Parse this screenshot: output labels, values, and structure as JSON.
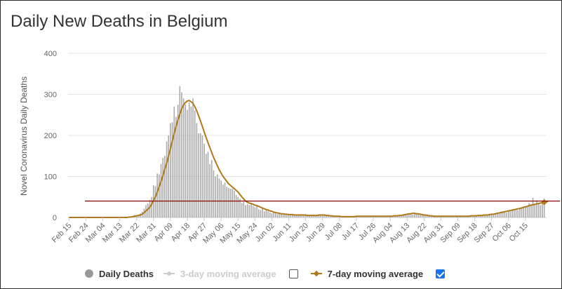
{
  "title": "Daily New Deaths in Belgium",
  "colors": {
    "bars": "#aaaaaa",
    "moving_average_7": "#b07a1a",
    "moving_average_3": "#cccccc",
    "reference_line": "#8b0000",
    "grid": "#e6e6e6"
  },
  "legend": {
    "items": [
      {
        "label": "Daily Deaths",
        "icon": "circle-marker",
        "checkbox": null
      },
      {
        "label": "3-day moving average",
        "icon": "line-marker",
        "checkbox": false
      },
      {
        "label": "7-day moving average",
        "icon": "line-marker",
        "checkbox": true
      }
    ]
  },
  "chart_data": {
    "type": "bar",
    "title": "Daily New Deaths in Belgium",
    "ylabel": "Novel Coronavirus Daily Deaths",
    "xlabel": "",
    "ylim": [
      0,
      400
    ],
    "yticks": [
      0,
      100,
      200,
      300,
      400
    ],
    "grid": true,
    "legend_position": "bottom",
    "x_tick_labels": [
      "Feb 15",
      "Feb 24",
      "Mar 04",
      "Mar 13",
      "Mar 22",
      "Mar 31",
      "Apr 09",
      "Apr 18",
      "Apr 27",
      "May 06",
      "May 15",
      "May 24",
      "Jun 02",
      "Jun 11",
      "Jun 20",
      "Jun 29",
      "Jul 08",
      "Jul 17",
      "Jul 26",
      "Aug 04",
      "Aug 13",
      "Aug 22",
      "Aug 31",
      "Sep 09",
      "Sep 18",
      "Sep 27",
      "Oct 06",
      "Oct 15"
    ],
    "x_start": "Feb 15",
    "reference_line_value": 40,
    "series": [
      {
        "name": "Daily Deaths",
        "values": [
          0,
          0,
          0,
          0,
          0,
          0,
          0,
          0,
          0,
          0,
          0,
          0,
          0,
          0,
          0,
          0,
          0,
          0,
          0,
          0,
          0,
          0,
          0,
          0,
          0,
          0,
          0,
          0,
          0,
          1,
          0,
          1,
          2,
          3,
          4,
          6,
          4,
          5,
          10,
          14,
          21,
          30,
          34,
          43,
          50,
          78,
          76,
          107,
          105,
          130,
          145,
          150,
          185,
          200,
          230,
          232,
          270,
          245,
          275,
          320,
          305,
          290,
          275,
          262,
          280,
          270,
          290,
          260,
          230,
          205,
          205,
          200,
          180,
          155,
          160,
          130,
          140,
          115,
          100,
          105,
          95,
          90,
          80,
          85,
          75,
          72,
          70,
          70,
          65,
          55,
          50,
          45,
          35,
          38,
          30,
          33,
          30,
          32,
          28,
          25,
          28,
          20,
          18,
          22,
          15,
          17,
          15,
          12,
          10,
          12,
          10,
          8,
          9,
          8,
          7,
          6,
          7,
          6,
          5,
          6,
          5,
          6,
          6,
          5,
          5,
          6,
          5,
          4,
          5,
          5,
          4,
          6,
          5,
          7,
          6,
          6,
          5,
          4,
          4,
          3,
          3,
          2,
          3,
          3,
          2,
          2,
          3,
          3,
          2,
          3,
          2,
          3,
          4,
          3,
          3,
          4,
          3,
          4,
          3,
          3,
          4,
          3,
          3,
          3,
          4,
          3,
          3,
          3,
          3,
          3,
          4,
          3,
          4,
          5,
          4,
          6,
          5,
          6,
          8,
          7,
          8,
          10,
          9,
          7,
          10,
          9,
          8,
          7,
          6,
          6,
          5,
          5,
          4,
          4,
          4,
          3,
          3,
          3,
          3,
          3,
          4,
          3,
          4,
          3,
          3,
          3,
          4,
          3,
          3,
          3,
          4,
          3,
          4,
          4,
          3,
          4,
          4,
          5,
          4,
          5,
          5,
          6,
          5,
          6,
          7,
          8,
          9,
          10,
          12,
          11,
          13,
          15,
          14,
          12,
          16,
          15,
          18,
          17,
          20,
          18,
          22,
          25,
          24,
          28,
          26,
          35,
          32,
          48,
          30,
          42,
          35,
          30,
          36,
          46
        ]
      },
      {
        "name": "7-day moving average",
        "values": [
          0,
          0,
          0,
          0,
          0,
          0,
          0,
          0,
          0,
          0,
          0,
          0,
          0,
          0,
          0,
          0,
          0,
          0,
          0,
          0,
          0,
          0,
          0,
          0,
          0,
          0,
          0,
          0,
          0,
          0,
          0,
          0,
          1,
          1,
          2,
          3,
          4,
          5,
          6,
          8,
          12,
          16,
          20,
          25,
          32,
          42,
          50,
          62,
          75,
          88,
          102,
          118,
          132,
          150,
          168,
          186,
          205,
          222,
          238,
          252,
          265,
          274,
          280,
          284,
          285,
          282,
          278,
          270,
          260,
          248,
          235,
          222,
          208,
          195,
          182,
          170,
          158,
          146,
          136,
          126,
          116,
          108,
          100,
          94,
          88,
          82,
          78,
          74,
          70,
          66,
          62,
          56,
          50,
          45,
          40,
          37,
          35,
          34,
          32,
          30,
          29,
          27,
          25,
          23,
          21,
          19,
          18,
          16,
          15,
          13,
          12,
          11,
          10,
          9,
          9,
          8,
          8,
          7,
          7,
          7,
          6,
          6,
          6,
          6,
          6,
          6,
          6,
          5,
          5,
          5,
          5,
          5,
          5,
          6,
          6,
          6,
          6,
          5,
          5,
          4,
          4,
          3,
          3,
          3,
          3,
          2,
          2,
          2,
          2,
          2,
          2,
          2,
          2,
          3,
          3,
          3,
          3,
          3,
          3,
          3,
          3,
          3,
          3,
          3,
          3,
          3,
          3,
          3,
          3,
          3,
          3,
          3,
          3,
          4,
          4,
          4,
          5,
          5,
          6,
          7,
          8,
          9,
          9,
          10,
          10,
          9,
          9,
          8,
          7,
          6,
          6,
          5,
          4,
          4,
          3,
          3,
          3,
          3,
          3,
          3,
          3,
          3,
          3,
          3,
          3,
          3,
          3,
          3,
          3,
          3,
          3,
          3,
          3,
          3,
          4,
          4,
          4,
          4,
          5,
          5,
          5,
          6,
          6,
          6,
          7,
          8,
          8,
          9,
          10,
          11,
          12,
          13,
          14,
          15,
          16,
          17,
          18,
          19,
          20,
          21,
          22,
          23,
          25,
          26,
          27,
          29,
          30,
          31,
          32,
          33,
          34,
          35,
          36,
          37,
          38,
          39
        ]
      }
    ]
  }
}
